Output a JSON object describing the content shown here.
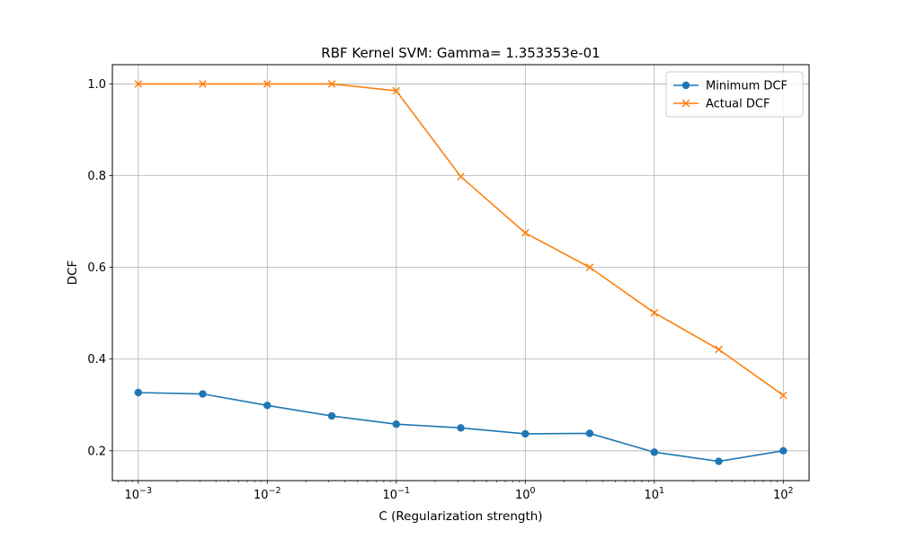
{
  "chart_data": {
    "type": "line",
    "title": "RBF Kernel SVM: Gamma= 1.353353e-01",
    "xlabel": "C (Regularization strength)",
    "ylabel": "DCF",
    "x_scale": "log",
    "xlim": [
      0.00063,
      158.5
    ],
    "ylim": [
      0.135,
      1.042
    ],
    "grid": true,
    "legend_position": "top-right",
    "x": [
      0.001,
      0.00316,
      0.01,
      0.0316,
      0.1,
      0.316,
      1,
      3.16,
      10,
      31.6,
      100
    ],
    "x_ticks": [
      {
        "value": 0.001,
        "base": "10",
        "exp": "−3"
      },
      {
        "value": 0.01,
        "base": "10",
        "exp": "−2"
      },
      {
        "value": 0.1,
        "base": "10",
        "exp": "−1"
      },
      {
        "value": 1,
        "base": "10",
        "exp": "0"
      },
      {
        "value": 10,
        "base": "10",
        "exp": "1"
      },
      {
        "value": 100,
        "base": "10",
        "exp": "2"
      }
    ],
    "y_ticks": [
      {
        "value": 0.2,
        "label": "0.2"
      },
      {
        "value": 0.4,
        "label": "0.4"
      },
      {
        "value": 0.6,
        "label": "0.6"
      },
      {
        "value": 0.8,
        "label": "0.8"
      },
      {
        "value": 1.0,
        "label": "1.0"
      }
    ],
    "series": [
      {
        "name": "Minimum DCF",
        "color": "#1f77b4",
        "marker": "circle",
        "values": [
          0.327,
          0.324,
          0.299,
          0.276,
          0.258,
          0.25,
          0.237,
          0.238,
          0.197,
          0.177,
          0.2
        ]
      },
      {
        "name": "Actual DCF",
        "color": "#ff7f0e",
        "marker": "x",
        "values": [
          1.0,
          1.0,
          1.0,
          1.0,
          0.985,
          0.798,
          0.675,
          0.6,
          0.501,
          0.421,
          0.321
        ]
      }
    ]
  }
}
